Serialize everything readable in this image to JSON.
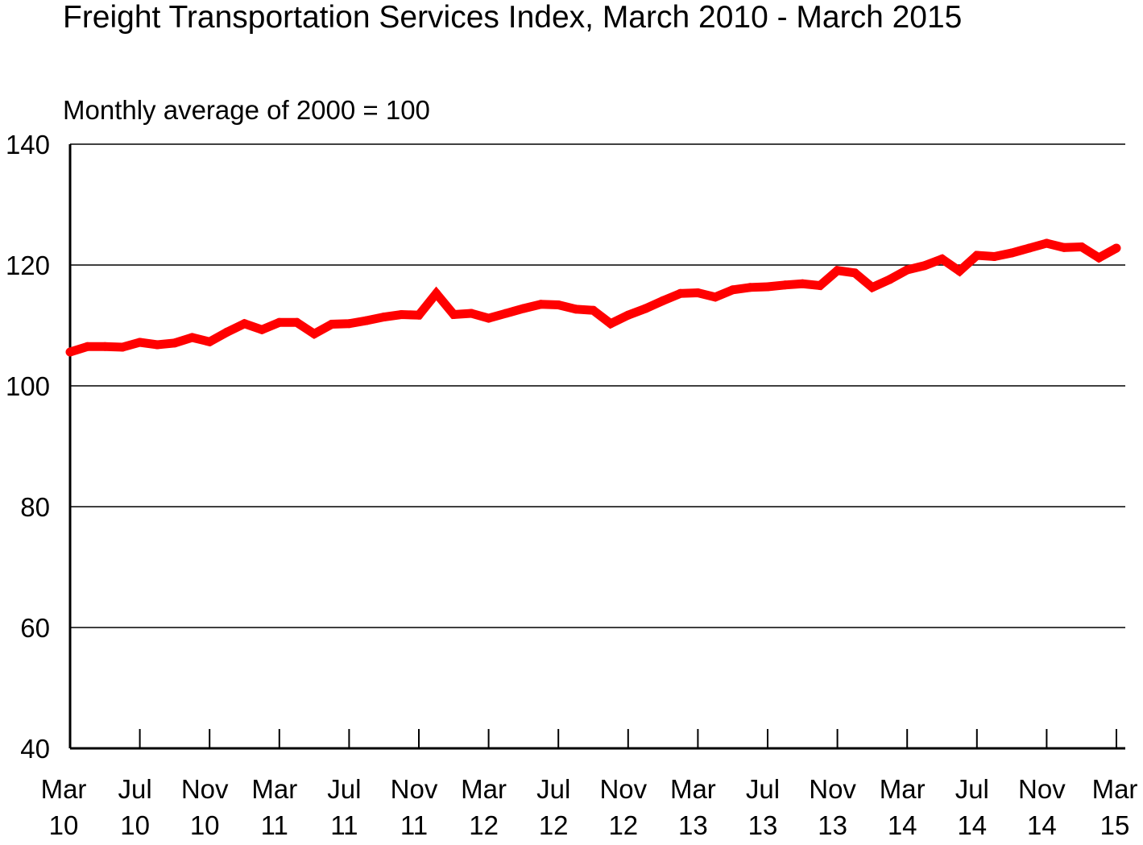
{
  "chart_data": {
    "type": "line",
    "title": "Freight Transportation Services Index, March 2010 - March 2015",
    "subtitle": "Monthly average of 2000 = 100",
    "xlabel": "",
    "ylabel": "Monthly average of 2000 = 100",
    "ylim": [
      40,
      140
    ],
    "yticks": [
      "140",
      "120",
      "100",
      "80",
      "60",
      "40"
    ],
    "grid": true,
    "x_tick_labels": [
      {
        "month": "Mar",
        "year": "10"
      },
      {
        "month": "Jul",
        "year": "10"
      },
      {
        "month": "Nov",
        "year": "10"
      },
      {
        "month": "Mar",
        "year": "11"
      },
      {
        "month": "Jul",
        "year": "11"
      },
      {
        "month": "Nov",
        "year": "11"
      },
      {
        "month": "Mar",
        "year": "12"
      },
      {
        "month": "Jul",
        "year": "12"
      },
      {
        "month": "Nov",
        "year": "12"
      },
      {
        "month": "Mar",
        "year": "13"
      },
      {
        "month": "Jul",
        "year": "13"
      },
      {
        "month": "Nov",
        "year": "13"
      },
      {
        "month": "Mar",
        "year": "14"
      },
      {
        "month": "Jul",
        "year": "14"
      },
      {
        "month": "Nov",
        "year": "14"
      },
      {
        "month": "Mar",
        "year": "15"
      }
    ],
    "series": [
      {
        "name": "Freight Transportation Services Index",
        "color": "#ff0000",
        "values": [
          105.6,
          106.5,
          106.5,
          106.4,
          107.2,
          106.8,
          107.1,
          108.0,
          107.3,
          108.9,
          110.3,
          109.3,
          110.5,
          110.5,
          108.6,
          110.2,
          110.3,
          110.8,
          111.4,
          111.8,
          111.7,
          115.3,
          111.8,
          112.0,
          111.2,
          112.0,
          112.8,
          113.5,
          113.4,
          112.7,
          112.5,
          110.3,
          111.7,
          112.8,
          114.1,
          115.3,
          115.4,
          114.7,
          115.9,
          116.3,
          116.4,
          116.7,
          116.9,
          116.6,
          119.1,
          118.7,
          116.3,
          117.6,
          119.2,
          119.9,
          121.0,
          119.0,
          121.6,
          121.4,
          122.0,
          122.8,
          123.6,
          122.9,
          123.0,
          121.2,
          122.8
        ]
      }
    ]
  }
}
